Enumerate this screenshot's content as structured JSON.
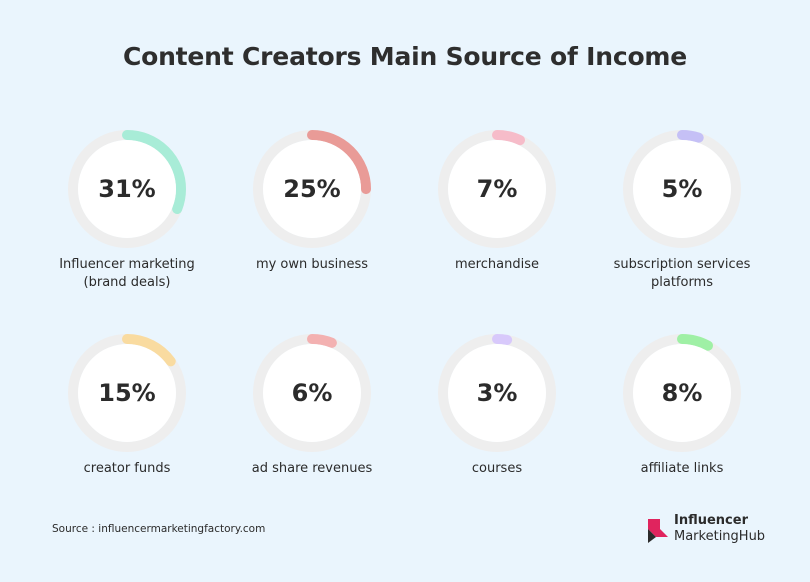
{
  "title": "Content Creators Main Source of Income",
  "chart_data": {
    "type": "donut",
    "title": "Content Creators Main Source of Income",
    "items": [
      {
        "label": "Influencer marketing (brand deals)",
        "label_lines": [
          "Influencer marketing",
          "(brand deals)"
        ],
        "value": 31,
        "display": "31%",
        "color": "#a8ecd7"
      },
      {
        "label": "my own business",
        "label_lines": [
          "my own business"
        ],
        "value": 25,
        "display": "25%",
        "color": "#e99b97"
      },
      {
        "label": "merchandise",
        "label_lines": [
          "merchandise"
        ],
        "value": 7,
        "display": "7%",
        "color": "#f6bcc9"
      },
      {
        "label": "subscription services platforms",
        "label_lines": [
          "subscription services",
          "platforms"
        ],
        "value": 5,
        "display": "5%",
        "color": "#c5c0f6"
      },
      {
        "label": "creator funds",
        "label_lines": [
          "creator funds"
        ],
        "value": 15,
        "display": "15%",
        "color": "#f9dba0"
      },
      {
        "label": "ad share revenues",
        "label_lines": [
          "ad share revenues"
        ],
        "value": 6,
        "display": "6%",
        "color": "#f3b1b1"
      },
      {
        "label": "courses",
        "label_lines": [
          "courses"
        ],
        "value": 3,
        "display": "3%",
        "color": "#d8c9fb"
      },
      {
        "label": "affiliate links",
        "label_lines": [
          "affiliate links"
        ],
        "value": 8,
        "display": "8%",
        "color": "#9ff0a5"
      }
    ],
    "track_color": "#eeeeee",
    "max": 100
  },
  "source": "Source : influencermarketingfactory.com",
  "logo": {
    "line1": "Influencer",
    "line2": "MarketingHub",
    "color": "#e0245e"
  }
}
